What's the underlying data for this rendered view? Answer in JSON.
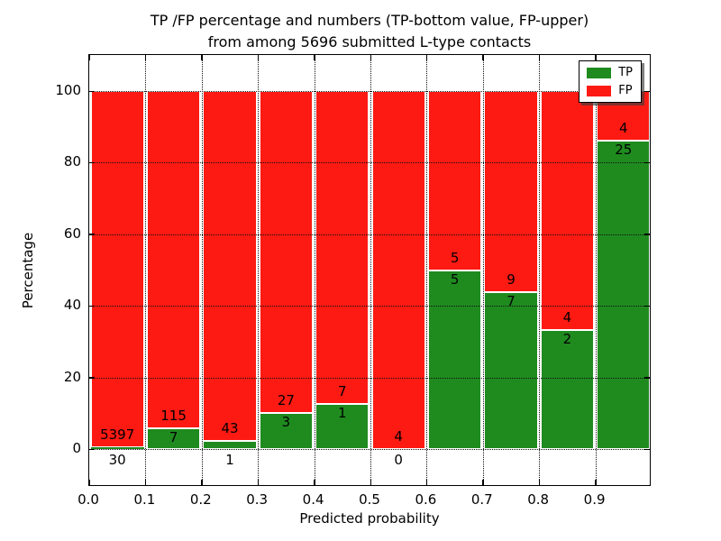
{
  "title": {
    "line1": "TP /FP percentage and numbers (TP-bottom value, FP-upper)",
    "line2": "from among 5696 submitted L-type contacts"
  },
  "chart_data": {
    "type": "bar",
    "stacked": true,
    "title": "TP /FP percentage and numbers (TP-bottom value, FP-upper)\nfrom among 5696 submitted L-type contacts",
    "xlabel": "Predicted probability",
    "ylabel": "Percentage",
    "total_contacts": 5696,
    "bin_width": 0.1,
    "categories": [
      "0.0-0.1",
      "0.1-0.2",
      "0.2-0.3",
      "0.3-0.4",
      "0.4-0.5",
      "0.5-0.6",
      "0.6-0.7",
      "0.7-0.8",
      "0.8-0.9",
      "0.9-1.0"
    ],
    "series": [
      {
        "name": "TP",
        "color": "#1f8b1f",
        "counts": [
          30,
          7,
          1,
          3,
          1,
          0,
          5,
          7,
          2,
          25
        ],
        "percentages": [
          0.55,
          5.74,
          2.27,
          10.0,
          12.5,
          0.0,
          50.0,
          43.75,
          33.33,
          86.21
        ]
      },
      {
        "name": "FP",
        "color": "#fc1a13",
        "counts": [
          5397,
          115,
          43,
          27,
          7,
          4,
          5,
          9,
          4,
          4
        ],
        "percentages": [
          99.45,
          94.26,
          97.73,
          90.0,
          87.5,
          100.0,
          50.0,
          56.25,
          66.67,
          13.79
        ]
      }
    ],
    "xtick_labels": [
      "0.0",
      "0.1",
      "0.2",
      "0.3",
      "0.4",
      "0.5",
      "0.6",
      "0.7",
      "0.8",
      "0.9"
    ],
    "ytick_labels": [
      "0",
      "20",
      "40",
      "60",
      "80",
      "100"
    ],
    "ytick_values": [
      0,
      20,
      40,
      60,
      80,
      100
    ],
    "ylim_display": [
      -10.6,
      110.1
    ],
    "grid": "dotted",
    "legend": {
      "position": "upper right",
      "entries": [
        "TP",
        "FP"
      ]
    },
    "annotation_note": "TP count printed at bottom of each bar, FP count printed above TP segment"
  }
}
